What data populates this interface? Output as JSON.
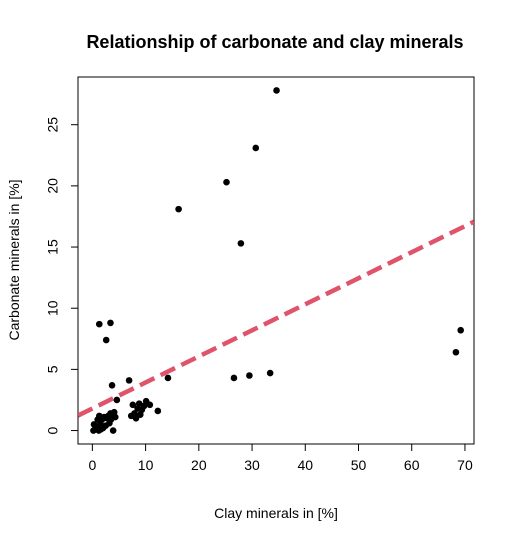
{
  "chart_data": {
    "type": "scatter",
    "title": "Relationship of carbonate and clay minerals",
    "xlabel": "Clay minerals in [%]",
    "ylabel": "Carbonate minerals in [%]",
    "xlim": [
      -2.7,
      71.7
    ],
    "ylim": [
      -1.1,
      28.9
    ],
    "xticks": [
      0,
      10,
      20,
      30,
      40,
      50,
      60,
      70
    ],
    "yticks": [
      0,
      5,
      10,
      15,
      20,
      25
    ],
    "grid": false,
    "legend": "none",
    "colors": {
      "points": "#000000",
      "trendline": "#DF536B",
      "axes": "#000000",
      "background": "#ffffff"
    },
    "series": [
      {
        "x": [
          0.2,
          0.3,
          0.6,
          1.0,
          1.1,
          1.2,
          1.3,
          1.5,
          1.6,
          1.8,
          2.0,
          2.2,
          2.5,
          2.8,
          3.0,
          3.2,
          3.4,
          3.5,
          3.7,
          3.9,
          4.1,
          4.3,
          4.6,
          1.3,
          3.4,
          2.6,
          3.7,
          6.9,
          7.3,
          7.6,
          7.9,
          8.2,
          8.5,
          8.8,
          9.0,
          9.3,
          9.7,
          10.1,
          10.8,
          12.3,
          14.2,
          16.2,
          25.2,
          26.6,
          27.9,
          29.5,
          30.7,
          33.4,
          34.6,
          68.3,
          69.2
        ],
        "y": [
          0.0,
          0.5,
          0.1,
          0.9,
          0.3,
          0.0,
          1.2,
          0.6,
          0.1,
          0.9,
          0.2,
          1.1,
          0.4,
          1.0,
          1.2,
          0.6,
          1.4,
          0.9,
          1.3,
          0.0,
          1.5,
          1.1,
          2.5,
          8.7,
          8.8,
          7.4,
          3.7,
          4.1,
          1.2,
          2.1,
          1.4,
          1.0,
          1.8,
          2.2,
          1.3,
          1.7,
          2.0,
          2.4,
          2.1,
          1.6,
          4.3,
          18.1,
          20.3,
          4.3,
          15.3,
          4.5,
          23.1,
          4.7,
          27.8,
          6.4,
          8.2
        ]
      }
    ],
    "trendline": {
      "intercept": 1.8,
      "slope": 0.213
    }
  }
}
